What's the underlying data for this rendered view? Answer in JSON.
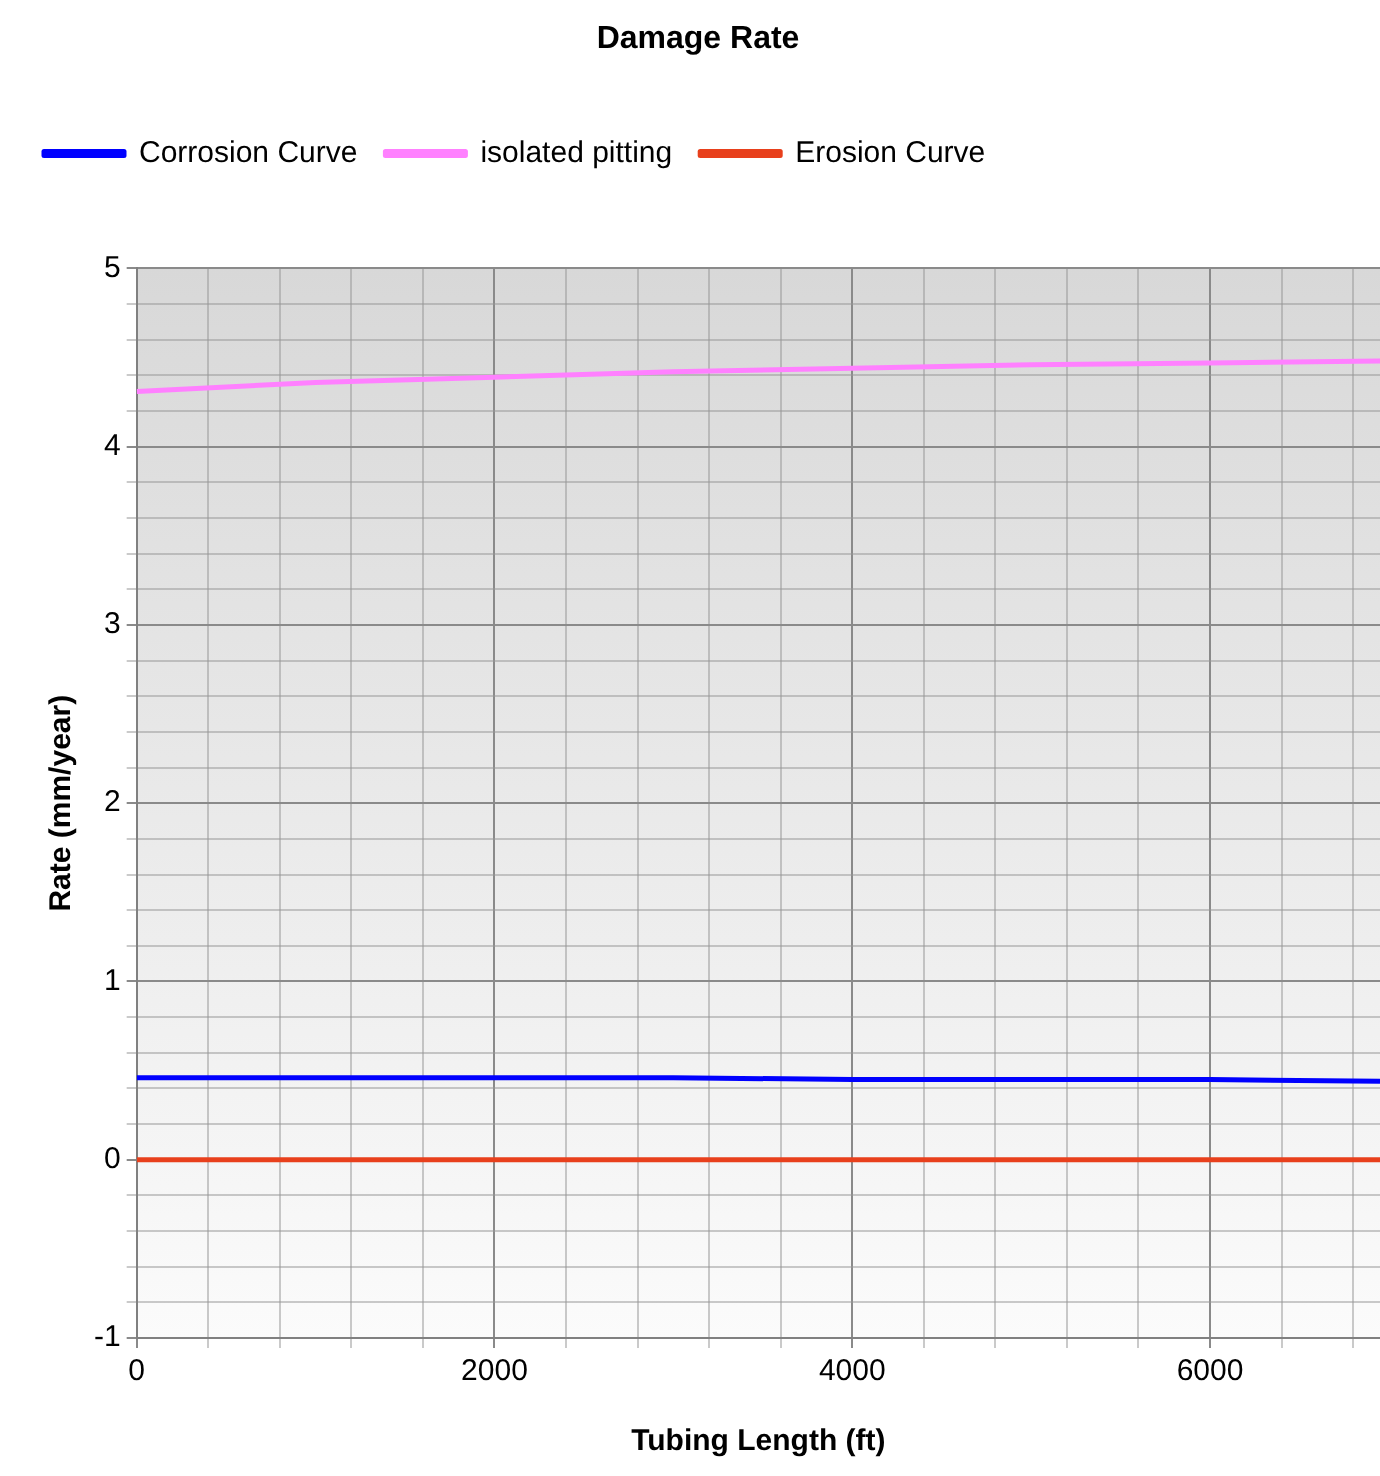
{
  "chart_data": {
    "type": "line",
    "title": "Damage Rate",
    "xlabel": "Tubing Length (ft)",
    "ylabel": "Rate (mm/year)",
    "x": [
      0,
      1000,
      2000,
      3000,
      4000,
      5000,
      6000,
      6950
    ],
    "series": [
      {
        "name": "Corrosion Curve",
        "color": "#0000ff",
        "values": [
          0.46,
          0.46,
          0.46,
          0.46,
          0.45,
          0.45,
          0.45,
          0.44
        ]
      },
      {
        "name": "isolated pitting",
        "color": "#ff80ff",
        "values": [
          4.31,
          4.36,
          4.39,
          4.42,
          4.44,
          4.46,
          4.47,
          4.48
        ]
      },
      {
        "name": "Erosion Curve",
        "color": "#e8401c",
        "values": [
          0,
          0,
          0,
          0,
          0,
          0,
          0,
          0
        ]
      }
    ],
    "xlim": [
      0,
      6950
    ],
    "xticks": [
      0,
      {
        "value": 400,
        "label": null
      },
      {
        "value": 800,
        "label": null
      },
      {
        "value": 1200,
        "label": null
      },
      {
        "value": 1600,
        "label": null
      },
      2000,
      {
        "value": 2400,
        "label": null
      },
      {
        "value": 2800,
        "label": null
      },
      {
        "value": 3200,
        "label": null
      },
      {
        "value": 3600,
        "label": null
      },
      4000,
      {
        "value": 4400,
        "label": null
      },
      {
        "value": 4800,
        "label": null
      },
      {
        "value": 5200,
        "label": null
      },
      {
        "value": 5600,
        "label": null
      },
      6000,
      {
        "value": 6400,
        "label": null
      },
      {
        "value": 6800,
        "label": null
      }
    ],
    "ylim": [
      -1,
      5
    ],
    "yticks": [
      -1,
      {
        "value": -0.8,
        "label": null
      },
      {
        "value": -0.6,
        "label": null
      },
      {
        "value": -0.4,
        "label": null
      },
      {
        "value": -0.2,
        "label": null
      },
      0,
      {
        "value": 0.2,
        "label": null
      },
      {
        "value": 0.4,
        "label": null
      },
      {
        "value": 0.6,
        "label": null
      },
      {
        "value": 0.8,
        "label": null
      },
      1,
      {
        "value": 1.2,
        "label": null
      },
      {
        "value": 1.4,
        "label": null
      },
      {
        "value": 1.6,
        "label": null
      },
      {
        "value": 1.8,
        "label": null
      },
      2,
      {
        "value": 2.2,
        "label": null
      },
      {
        "value": 2.4,
        "label": null
      },
      {
        "value": 2.6,
        "label": null
      },
      {
        "value": 2.8,
        "label": null
      },
      3,
      {
        "value": 3.2,
        "label": null
      },
      {
        "value": 3.4,
        "label": null
      },
      {
        "value": 3.6,
        "label": null
      },
      {
        "value": 3.8,
        "label": null
      },
      4,
      {
        "value": 4.2,
        "label": null
      },
      {
        "value": 4.4,
        "label": null
      },
      {
        "value": 4.6,
        "label": null
      },
      {
        "value": 4.8,
        "label": null
      },
      5
    ],
    "grid": true,
    "legend": "top left",
    "marker": "none",
    "line_style": "solid"
  }
}
